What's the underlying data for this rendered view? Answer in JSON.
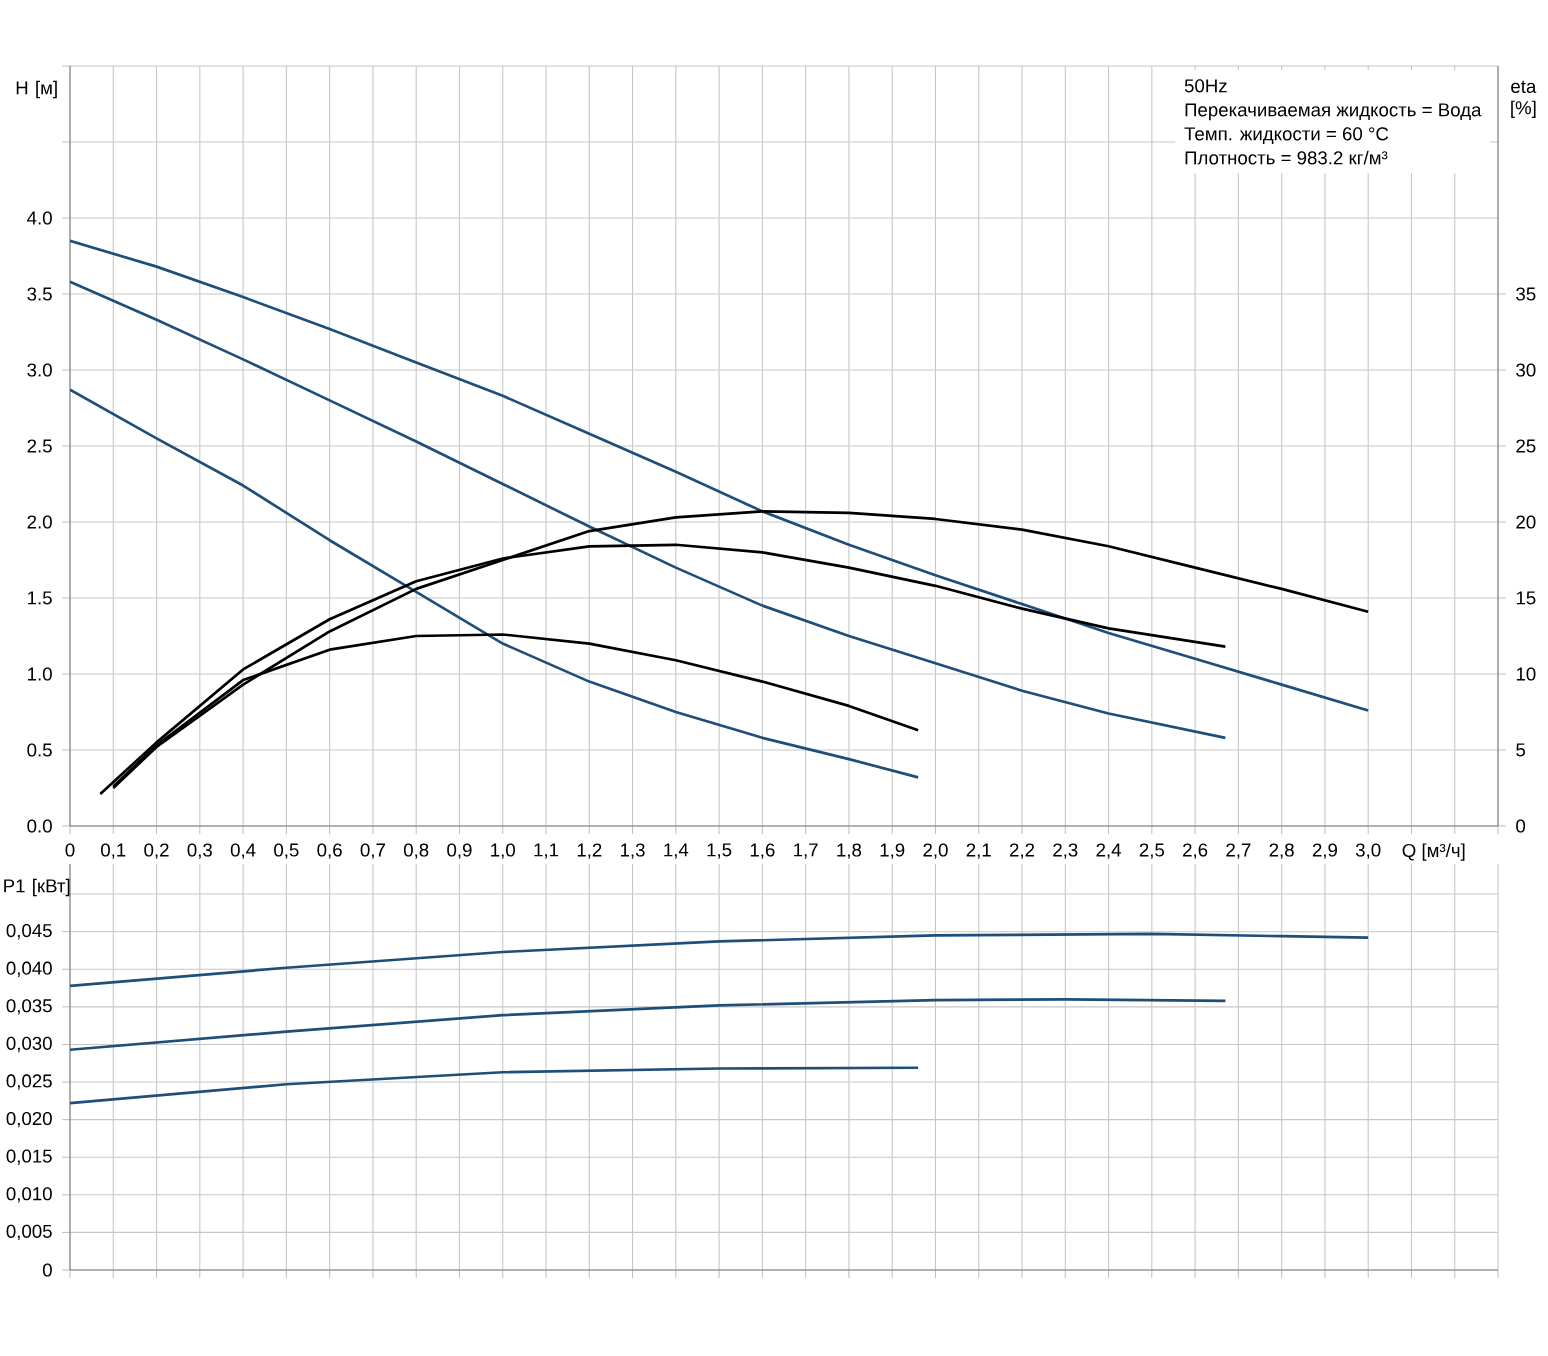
{
  "chart_data": [
    {
      "type": "line",
      "xlabel": "Q [м³/ч]",
      "ylabel": "H [м]",
      "y2label": "eta [%]",
      "grid": true,
      "annotations": [
        "50Hz",
        "Перекачиваемая жидкость = Вода",
        "Темп. жидкости = 60 °C",
        "Плотность = 983.2 кг/м³"
      ],
      "xlim": [
        0,
        3.3
      ],
      "xticks": [
        0,
        {
          "value": 0.1,
          "label": "0,1"
        },
        {
          "value": 0.2,
          "label": "0,2"
        },
        {
          "value": 0.3,
          "label": "0,3"
        },
        {
          "value": 0.4,
          "label": "0,4"
        },
        {
          "value": 0.5,
          "label": "0,5"
        },
        {
          "value": 0.6,
          "label": "0,6"
        },
        {
          "value": 0.7,
          "label": "0,7"
        },
        {
          "value": 0.8,
          "label": "0,8"
        },
        {
          "value": 0.9,
          "label": "0,9"
        },
        {
          "value": 1.0,
          "label": "1,0"
        },
        {
          "value": 1.1,
          "label": "1,1"
        },
        {
          "value": 1.2,
          "label": "1,2"
        },
        {
          "value": 1.3,
          "label": "1,3"
        },
        {
          "value": 1.4,
          "label": "1,4"
        },
        {
          "value": 1.5,
          "label": "1,5"
        },
        {
          "value": 1.6,
          "label": "1,6"
        },
        {
          "value": 1.7,
          "label": "1,7"
        },
        {
          "value": 1.8,
          "label": "1,8"
        },
        {
          "value": 1.9,
          "label": "1,9"
        },
        {
          "value": 2.0,
          "label": "2,0"
        },
        {
          "value": 2.1,
          "label": "2,1"
        },
        {
          "value": 2.2,
          "label": "2,2"
        },
        {
          "value": 2.3,
          "label": "2,3"
        },
        {
          "value": 2.4,
          "label": "2,4"
        },
        {
          "value": 2.5,
          "label": "2,5"
        },
        {
          "value": 2.6,
          "label": "2,6"
        },
        {
          "value": 2.7,
          "label": "2,7"
        },
        {
          "value": 2.8,
          "label": "2,8"
        },
        {
          "value": 2.9,
          "label": "2,9"
        },
        {
          "value": 3.0,
          "label": "3,0"
        },
        {
          "value": 3.1,
          "label": null
        },
        {
          "value": 3.2,
          "label": null
        },
        {
          "value": 3.3,
          "label": null
        }
      ],
      "ylim": [
        0,
        5
      ],
      "yticks": [
        {
          "value": 0,
          "label": "0.0"
        },
        {
          "value": 0.5,
          "label": "0.5"
        },
        {
          "value": 1.0,
          "label": "1.0"
        },
        {
          "value": 1.5,
          "label": "1.5"
        },
        {
          "value": 2.0,
          "label": "2.0"
        },
        {
          "value": 2.5,
          "label": "2.5"
        },
        {
          "value": 3.0,
          "label": "3.0"
        },
        {
          "value": 3.5,
          "label": "3.5"
        },
        {
          "value": 4.0,
          "label": "4.0"
        },
        {
          "value": 4.5,
          "label": null
        },
        {
          "value": 5.0,
          "label": null
        }
      ],
      "y2lim": [
        0,
        50
      ],
      "y2ticks": [
        0,
        5,
        10,
        15,
        20,
        25,
        30,
        35
      ],
      "series": [
        {
          "color": "#1f4e79",
          "x": [
            0,
            0.2,
            0.4,
            0.6,
            0.8,
            1.0,
            1.2,
            1.4,
            1.6,
            1.8,
            2.0,
            2.2,
            2.4,
            2.6,
            2.8,
            3.0
          ],
          "values": [
            3.85,
            3.68,
            3.48,
            3.27,
            3.05,
            2.83,
            2.58,
            2.33,
            2.07,
            1.85,
            1.65,
            1.46,
            1.27,
            1.1,
            0.93,
            0.76
          ]
        },
        {
          "color": "#1f4e79",
          "x": [
            0,
            0.2,
            0.4,
            0.6,
            0.8,
            1.0,
            1.2,
            1.4,
            1.6,
            1.8,
            2.0,
            2.2,
            2.4,
            2.67
          ],
          "values": [
            3.58,
            3.33,
            3.07,
            2.8,
            2.53,
            2.25,
            1.97,
            1.7,
            1.45,
            1.25,
            1.07,
            0.89,
            0.74,
            0.58
          ]
        },
        {
          "color": "#1f4e79",
          "x": [
            0,
            0.2,
            0.4,
            0.6,
            0.8,
            1.0,
            1.2,
            1.4,
            1.6,
            1.8,
            1.96
          ],
          "values": [
            2.87,
            2.55,
            2.24,
            1.88,
            1.54,
            1.2,
            0.95,
            0.75,
            0.58,
            0.44,
            0.32
          ]
        },
        {
          "color": "#000000",
          "axis": "y2",
          "x": [
            0.1,
            0.2,
            0.4,
            0.6,
            0.8,
            1.0,
            1.2,
            1.4,
            1.6,
            1.8,
            2.0,
            2.2,
            2.4,
            2.6,
            2.8,
            3.0
          ],
          "values": [
            2.5,
            5.2,
            9.3,
            12.8,
            15.6,
            17.5,
            19.4,
            20.3,
            20.7,
            20.6,
            20.2,
            19.5,
            18.4,
            17.0,
            15.6,
            14.1
          ]
        },
        {
          "color": "#000000",
          "axis": "y2",
          "x": [
            0.07,
            0.2,
            0.4,
            0.6,
            0.8,
            1.0,
            1.2,
            1.4,
            1.6,
            1.8,
            2.0,
            2.2,
            2.4,
            2.67
          ],
          "values": [
            2.1,
            5.5,
            10.3,
            13.6,
            16.1,
            17.6,
            18.4,
            18.5,
            18.0,
            17.0,
            15.8,
            14.3,
            13.0,
            11.8
          ]
        },
        {
          "color": "#000000",
          "axis": "y2",
          "x": [
            0.1,
            0.2,
            0.4,
            0.6,
            0.8,
            1.0,
            1.2,
            1.4,
            1.6,
            1.8,
            1.96
          ],
          "values": [
            2.6,
            5.3,
            9.6,
            11.6,
            12.5,
            12.6,
            12.0,
            10.9,
            9.5,
            7.9,
            6.3
          ]
        }
      ]
    },
    {
      "type": "line",
      "ylabel": "P1 [кВт]",
      "grid": true,
      "tick_labels": "y",
      "xlim": [
        0,
        3.3
      ],
      "xticks": [
        0,
        0.1,
        0.2,
        0.3,
        0.4,
        0.5,
        0.6,
        0.7,
        0.8,
        0.9,
        1.0,
        1.1,
        1.2,
        1.3,
        1.4,
        1.5,
        1.6,
        1.7,
        1.8,
        1.9,
        2.0,
        2.1,
        2.2,
        2.3,
        2.4,
        2.5,
        2.6,
        2.7,
        2.8,
        2.9,
        3.0,
        3.1,
        3.2,
        3.3
      ],
      "ylim": [
        0,
        0.054
      ],
      "yticks": [
        0,
        {
          "value": 0.005,
          "label": "0,005"
        },
        {
          "value": 0.01,
          "label": "0,010"
        },
        {
          "value": 0.015,
          "label": "0,015"
        },
        {
          "value": 0.02,
          "label": "0,020"
        },
        {
          "value": 0.025,
          "label": "0,025"
        },
        {
          "value": 0.03,
          "label": "0,030"
        },
        {
          "value": 0.035,
          "label": "0,035"
        },
        {
          "value": 0.04,
          "label": "0,040"
        },
        {
          "value": 0.045,
          "label": "0,045"
        },
        {
          "value": 0.05,
          "label": null
        }
      ],
      "series": [
        {
          "color": "#1f4e79",
          "x": [
            0,
            0.5,
            1.0,
            1.5,
            2.0,
            2.5,
            2.8,
            3.0
          ],
          "values": [
            0.0378,
            0.0402,
            0.0423,
            0.0437,
            0.0445,
            0.0447,
            0.0444,
            0.0442
          ]
        },
        {
          "color": "#1f4e79",
          "x": [
            0,
            0.5,
            1.0,
            1.5,
            2.0,
            2.3,
            2.67
          ],
          "values": [
            0.0293,
            0.0317,
            0.0339,
            0.0352,
            0.0359,
            0.036,
            0.0358
          ]
        },
        {
          "color": "#1f4e79",
          "x": [
            0,
            0.5,
            1.0,
            1.5,
            1.96
          ],
          "values": [
            0.0222,
            0.0247,
            0.0263,
            0.0268,
            0.0269
          ]
        }
      ]
    }
  ]
}
